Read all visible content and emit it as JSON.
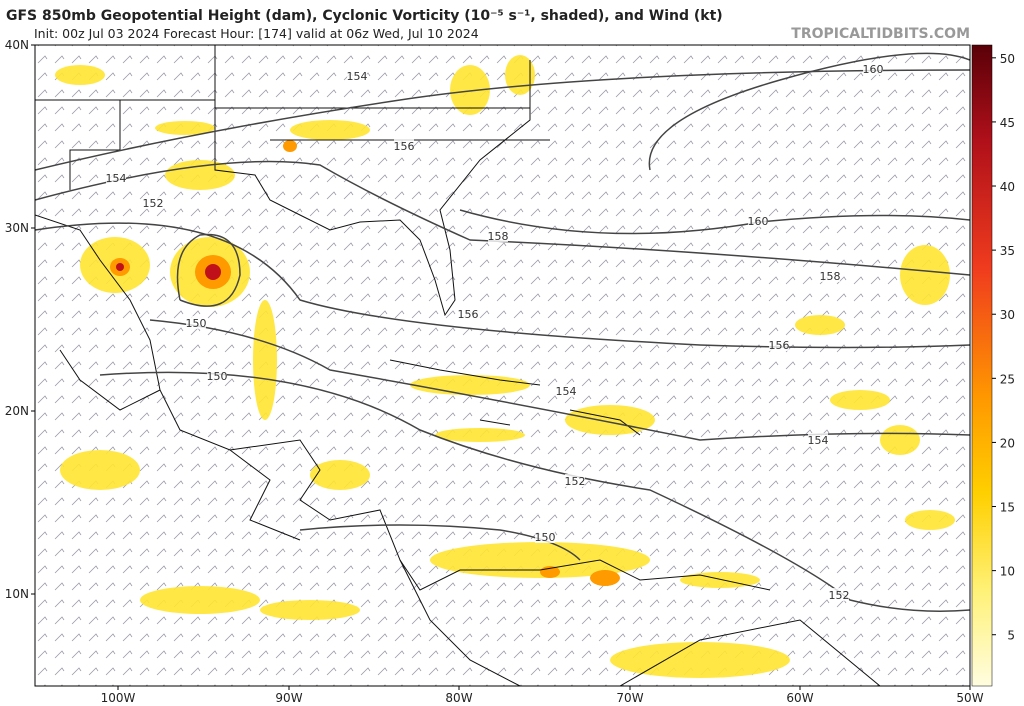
{
  "header": {
    "title": "GFS 850mb Geopotential Height (dam), Cyclonic Vorticity (10⁻⁵ s⁻¹, shaded), and Wind (kt)",
    "subtitle": "Init: 00z Jul 03 2024   Forecast Hour: [174]   valid at 06z Wed, Jul 10 2024",
    "watermark": "TROPICALTIDBITS.COM"
  },
  "map": {
    "lat_labels": [
      "40N",
      "30N",
      "20N",
      "10N"
    ],
    "lon_labels": [
      "100W",
      "90W",
      "80W",
      "70W",
      "60W",
      "50W"
    ],
    "contour_labels": [
      "154",
      "160",
      "156",
      "154",
      "152",
      "160",
      "158",
      "158",
      "156",
      "150",
      "156",
      "150",
      "154",
      "154",
      "152",
      "150",
      "152"
    ]
  },
  "colorbar": {
    "range": [
      1,
      51
    ],
    "ticks": [
      5,
      10,
      15,
      20,
      25,
      30,
      35,
      40,
      45,
      50
    ]
  }
}
